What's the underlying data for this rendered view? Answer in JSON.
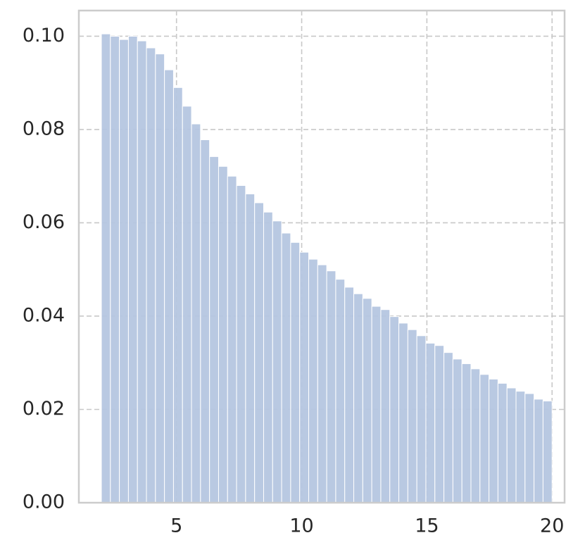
{
  "chart_data": {
    "type": "histogram",
    "bins": [
      2,
      2.36,
      2.72,
      3.08,
      3.44,
      3.8,
      4.16,
      4.52,
      4.88,
      5.24,
      5.6,
      5.96,
      6.32,
      6.68,
      7.04,
      7.4,
      7.76,
      8.12,
      8.48,
      8.84,
      9.2,
      9.56,
      9.92,
      10.28,
      10.64,
      11,
      11.36,
      11.72,
      12.08,
      12.44,
      12.8,
      13.16,
      13.52,
      13.88,
      14.24,
      14.6,
      14.96,
      15.32,
      15.68,
      16.04,
      16.4,
      16.76,
      17.12,
      17.48,
      17.84,
      18.2,
      18.56,
      18.92,
      19.28,
      19.64,
      20
    ],
    "values": [
      0.1005,
      0.1,
      0.0993,
      0.1,
      0.099,
      0.0975,
      0.0962,
      0.0928,
      0.089,
      0.085,
      0.0812,
      0.0778,
      0.0742,
      0.0721,
      0.07,
      0.068,
      0.0662,
      0.0643,
      0.0623,
      0.0604,
      0.0578,
      0.0558,
      0.0537,
      0.0522,
      0.051,
      0.0497,
      0.0479,
      0.0462,
      0.0448,
      0.0438,
      0.0421,
      0.0414,
      0.0399,
      0.0385,
      0.0371,
      0.0358,
      0.0342,
      0.0337,
      0.0322,
      0.0308,
      0.0298,
      0.0287,
      0.0275,
      0.0265,
      0.0256,
      0.0246,
      0.0239,
      0.0234,
      0.0222,
      0.0218
    ],
    "color": "#b5c6e0",
    "xlim": [
      1.1,
      20.5
    ],
    "xticks": [
      5,
      10,
      15,
      20
    ],
    "ylim": [
      0,
      0.1055
    ],
    "yticks": [
      {
        "value": 0,
        "label": "0.00"
      },
      {
        "value": 0.02,
        "label": "0.02"
      },
      {
        "value": 0.04,
        "label": "0.04"
      },
      {
        "value": 0.06,
        "label": "0.06"
      },
      {
        "value": 0.08,
        "label": "0.08"
      },
      {
        "value": 0.1,
        "label": "0.10"
      }
    ],
    "grid": true
  }
}
